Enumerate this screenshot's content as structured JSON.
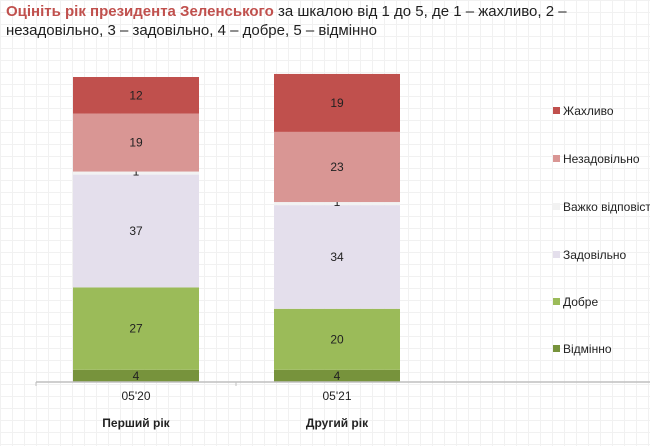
{
  "title": {
    "bold": "Оцініть рік президента Зеленського",
    "rest": " за шкалою від 1 до 5, де 1 – жахливо, 2 – незадовільно, 3 – задовільно, 4 – добре, 5 – відмінно"
  },
  "chart_data": {
    "type": "bar",
    "stacked": true,
    "categories": [
      "05'20",
      "05'21"
    ],
    "category_sublabels": [
      "Перший рік",
      "Другий рік"
    ],
    "ylim": [
      0,
      100
    ],
    "grid": false,
    "legend_position": "right",
    "series": [
      {
        "name": "Відмінно",
        "values": [
          4,
          4
        ],
        "color": "#77933c"
      },
      {
        "name": "Добре",
        "values": [
          27,
          20
        ],
        "color": "#9bbb59"
      },
      {
        "name": "Задовільно",
        "values": [
          37,
          34
        ],
        "color": "#e4dfec"
      },
      {
        "name": "Важко відповісти",
        "values": [
          1,
          1
        ],
        "color": "#f2f2f2"
      },
      {
        "name": "Незадовільно",
        "values": [
          19,
          23
        ],
        "color": "#d99694"
      },
      {
        "name": "Жахливо",
        "values": [
          12,
          19
        ],
        "color": "#c0504d"
      }
    ]
  }
}
